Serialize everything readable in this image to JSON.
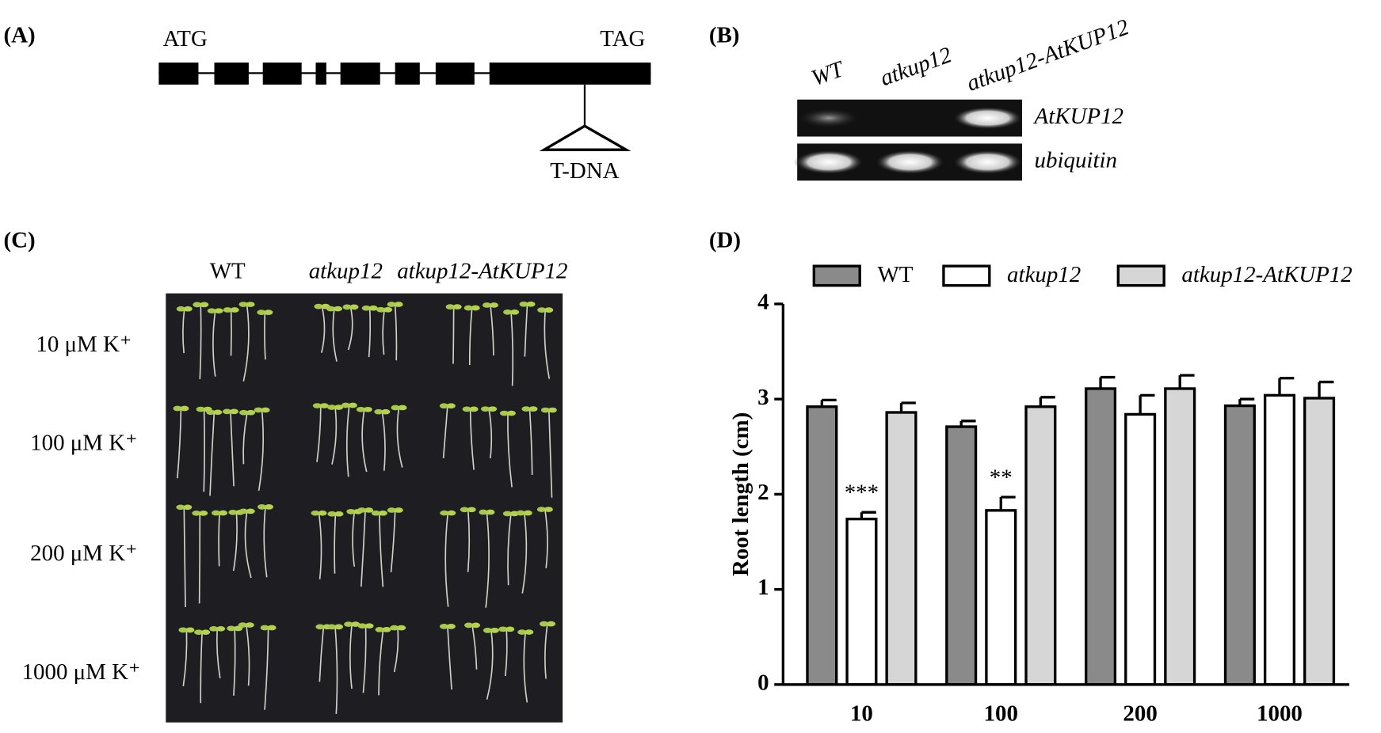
{
  "panel_a": {
    "label": "(A)",
    "start": "ATG",
    "stop": "TAG",
    "insertion": "T-DNA"
  },
  "panel_b": {
    "label": "(B)",
    "lanes": [
      "WT",
      "atkup12",
      "atkup12-AtKUP12"
    ],
    "genes": [
      "AtKUP12",
      "ubiquitin"
    ]
  },
  "panel_c": {
    "label": "(C)",
    "columns": [
      "WT",
      "atkup12",
      "atkup12-AtKUP12"
    ],
    "rows": [
      "10 μM K⁺",
      "100 μM K⁺",
      "200 μM K⁺",
      "1000 μM K⁺"
    ]
  },
  "chart_data": {
    "type": "bar",
    "label": "(D)",
    "y_label": "Root length (cm)",
    "categories": [
      "10",
      "100",
      "200",
      "1000"
    ],
    "series": [
      {
        "name": "WT",
        "color": "#8a8a8a",
        "values": [
          2.92,
          2.71,
          3.11,
          2.93
        ],
        "errors": [
          0.07,
          0.06,
          0.12,
          0.07
        ]
      },
      {
        "name": "atkup12",
        "color": "#ffffff",
        "values": [
          1.74,
          1.83,
          2.84,
          3.04
        ],
        "errors": [
          0.07,
          0.14,
          0.2,
          0.18
        ],
        "significance": [
          "***",
          "**",
          null,
          null
        ]
      },
      {
        "name": "atkup12-AtKUP12",
        "color": "#d6d6d6",
        "values": [
          2.86,
          2.92,
          3.11,
          3.01
        ],
        "errors": [
          0.1,
          0.1,
          0.14,
          0.17
        ]
      }
    ],
    "ylim": [
      0,
      4
    ],
    "yticks": [
      0,
      1,
      2,
      3,
      4
    ]
  }
}
